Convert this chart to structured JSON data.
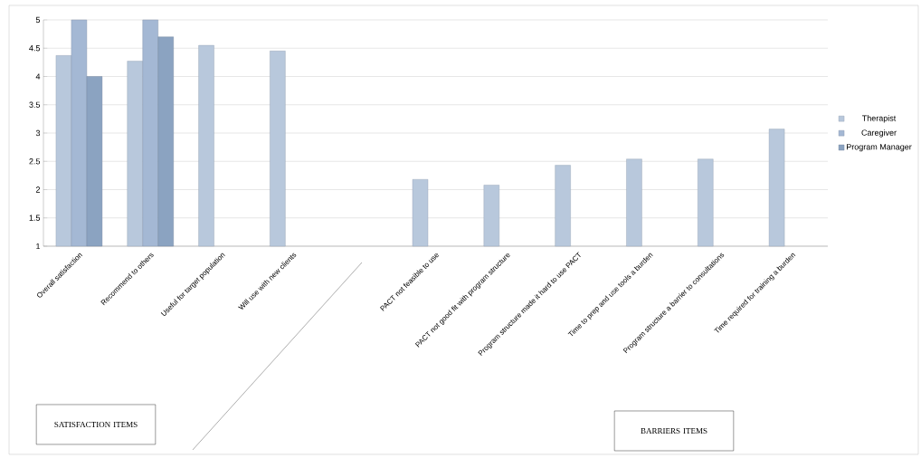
{
  "chart_data": {
    "type": "bar",
    "categories": [
      "Overall satisfaction",
      "Recommend to others",
      "Useful for target population",
      "Will use with new clients",
      null,
      "PACT not feasible to use",
      "PACT not good fit with program structure",
      "Program structure made it hard to use PACT",
      "Time to prep and use tools a burden",
      "Program structure a barrier to consultations",
      "Time required for training a burden"
    ],
    "series": [
      {
        "name": "Therapist",
        "color": "#b8c8dc",
        "values": [
          4.37,
          4.27,
          4.55,
          4.45,
          null,
          2.18,
          2.08,
          2.43,
          2.54,
          2.54,
          3.07
        ]
      },
      {
        "name": "Caregiver",
        "color": "#a4b8d4",
        "values": [
          5,
          5,
          null,
          null,
          null,
          null,
          null,
          null,
          null,
          null,
          null
        ]
      },
      {
        "name": "Program Manager",
        "color": "#8ba3c1",
        "values": [
          4.0,
          4.7,
          null,
          null,
          null,
          null,
          null,
          null,
          null,
          null,
          null
        ]
      }
    ],
    "ylim": [
      1,
      5
    ],
    "yticks": [
      1,
      1.5,
      2,
      2.5,
      3,
      3.5,
      4,
      4.5,
      5
    ],
    "grid": "y",
    "legend": "right",
    "annotations": [
      "SATISFACTION ITEMS",
      "BARRIERS ITEMS"
    ]
  }
}
